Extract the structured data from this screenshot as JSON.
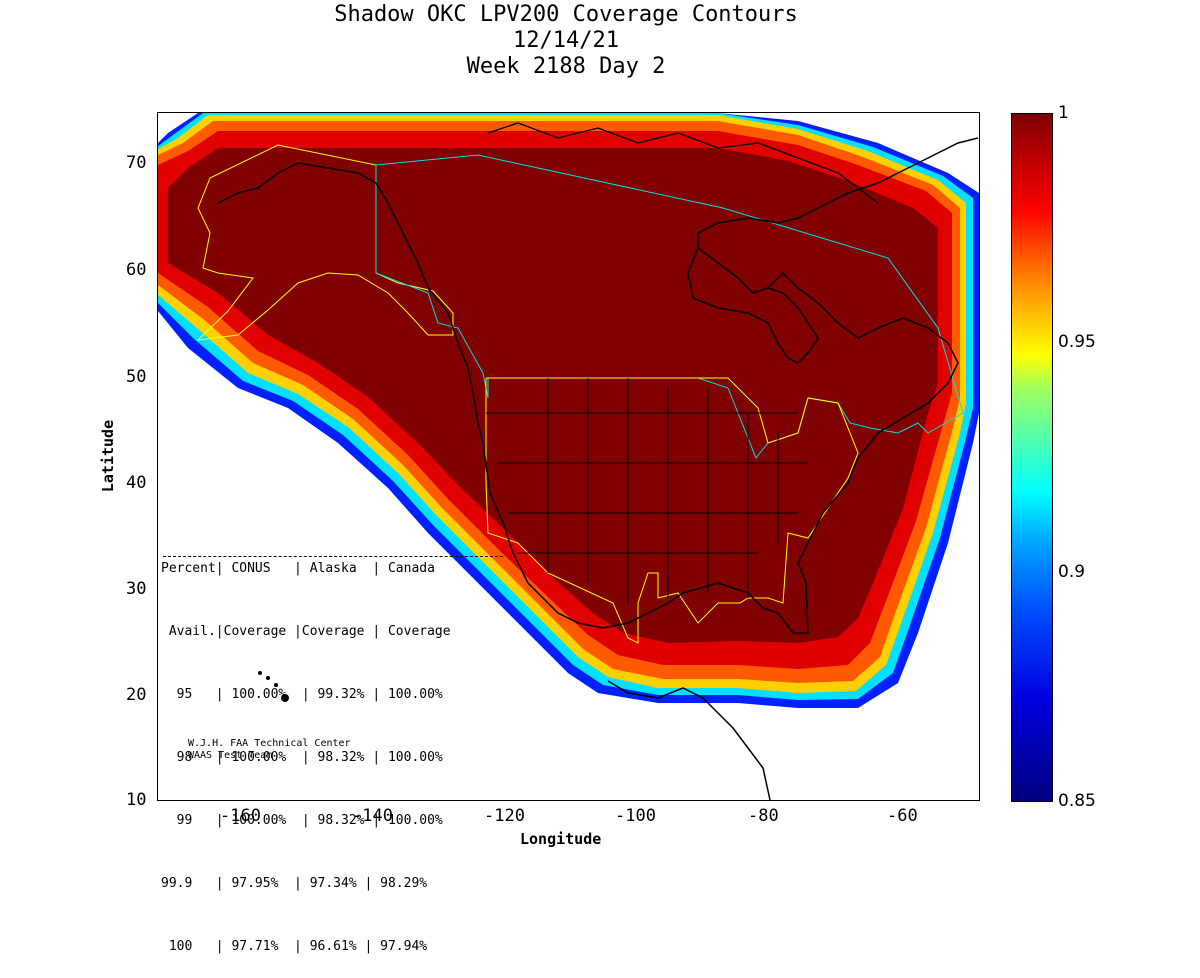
{
  "title": {
    "line1": "Shadow OKC LPV200 Coverage Contours",
    "line2": "12/14/21",
    "line3": "Week 2188 Day 2"
  },
  "axes": {
    "xlabel": "Longitude",
    "ylabel": "Latitude",
    "x_ticks": [
      "-160",
      "-140",
      "-120",
      "-100",
      "-80",
      "-60"
    ],
    "y_ticks": [
      "70",
      "60",
      "50",
      "40",
      "30",
      "20",
      "10"
    ],
    "xlim": [
      -175,
      -50
    ],
    "ylim": [
      10,
      75
    ]
  },
  "colorbar": {
    "labels": [
      "1",
      "0.95",
      "0.9",
      "0.85"
    ],
    "range": [
      0.85,
      1.0
    ],
    "colormap": "jet"
  },
  "stats": {
    "header1": "Percent| CONUS   | Alaska  | Canada",
    "header2": " Avail.|Coverage |Coverage | Coverage",
    "rows": [
      "  95   | 100.00%  | 99.32% | 100.00%",
      "  98   | 100.00%  | 98.32% | 100.00%",
      "  99   | 100.00%  | 98.32% | 100.00%",
      "99.9   | 97.95%  | 97.34% | 98.29%",
      " 100   | 97.71%  | 96.61% | 97.94%"
    ]
  },
  "credit": {
    "line1": "W.J.H. FAA Technical Center",
    "line2": "WAAS Test Team"
  },
  "colors": {
    "deep_red": "#800000",
    "red": "#d40000",
    "border_yellow": "#ffff00",
    "border_cyan": "#00e0e0"
  }
}
